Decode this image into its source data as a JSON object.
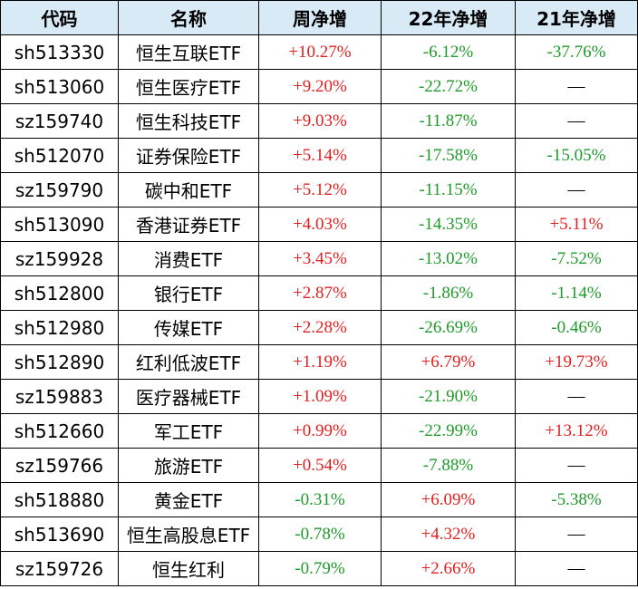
{
  "table": {
    "header": [
      "代码",
      "名称",
      "周净增",
      "22年净增",
      "21年净增"
    ],
    "rows": [
      [
        "sh513330",
        "恒生互联ETF",
        "+10.27%",
        "-6.12%",
        "-37.76%"
      ],
      [
        "sh513060",
        "恒生医疗ETF",
        "+9.20%",
        "-22.72%",
        "—"
      ],
      [
        "sz159740",
        "恒生科技ETF",
        "+9.03%",
        "-11.87%",
        "—"
      ],
      [
        "sh512070",
        "证券保险ETF",
        "+5.14%",
        "-17.58%",
        "-15.05%"
      ],
      [
        "sz159790",
        "碳中和ETF",
        "+5.12%",
        "-11.15%",
        "—"
      ],
      [
        "sh513090",
        "香港证券ETF",
        "+4.03%",
        "-14.35%",
        "+5.11%"
      ],
      [
        "sz159928",
        "消费ETF",
        "+3.45%",
        "-13.02%",
        "-7.52%"
      ],
      [
        "sh512800",
        "银行ETF",
        "+2.87%",
        "-1.86%",
        "-1.14%"
      ],
      [
        "sh512980",
        "传媒ETF",
        "+2.28%",
        "-26.69%",
        "-0.46%"
      ],
      [
        "sh512890",
        "红利低波ETF",
        "+1.19%",
        "+6.79%",
        "+19.73%"
      ],
      [
        "sz159883",
        "医疗器械ETF",
        "+1.09%",
        "-21.90%",
        "—"
      ],
      [
        "sh512660",
        "军工ETF",
        "+0.99%",
        "-22.99%",
        "+13.12%"
      ],
      [
        "sz159766",
        "旅游ETF",
        "+0.54%",
        "-7.88%",
        "—"
      ],
      [
        "sh518880",
        "黄金ETF",
        "-0.31%",
        "+6.09%",
        "-5.38%"
      ],
      [
        "sh513690",
        "恒生高股息ETF",
        "-0.78%",
        "+4.32%",
        "—"
      ],
      [
        "sz159726",
        "恒生红利",
        "-0.79%",
        "+2.66%",
        "—"
      ]
    ]
  }
}
